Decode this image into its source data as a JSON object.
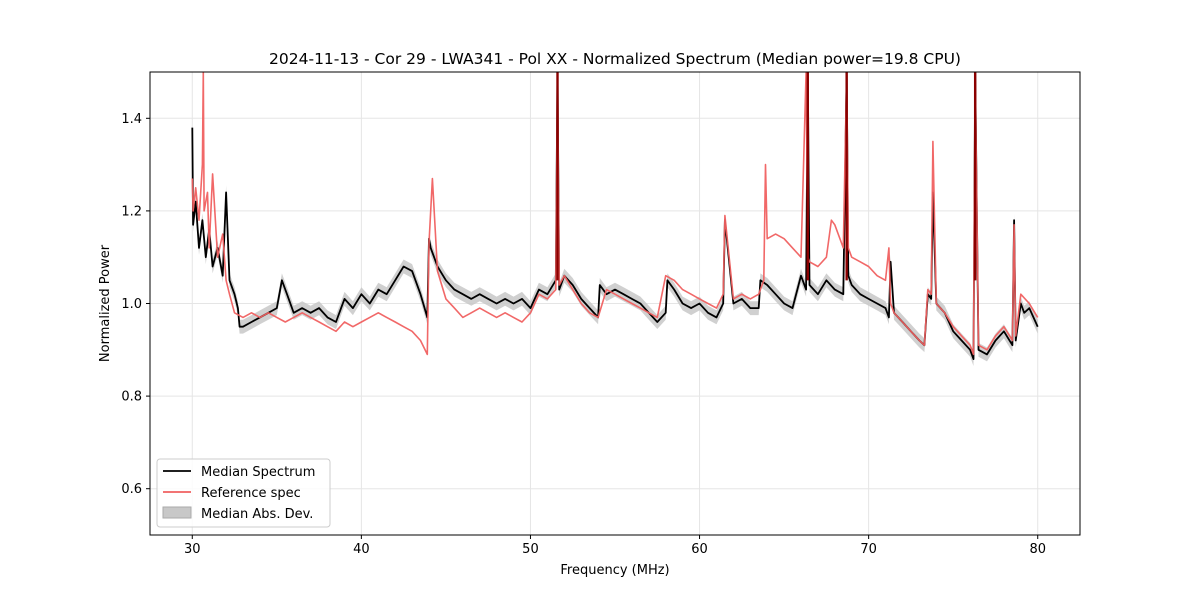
{
  "chart_data": {
    "type": "line",
    "title": "2024-11-13 - Cor 29 - LWA341 - Pol XX - Normalized Spectrum (Median power=19.8 CPU)",
    "xlabel": "Frequency (MHz)",
    "ylabel": "Normalized Power",
    "xlim": [
      27.5,
      82.5
    ],
    "ylim": [
      0.5,
      1.5
    ],
    "xticks": [
      30,
      40,
      50,
      60,
      70,
      80
    ],
    "yticks": [
      0.6,
      0.8,
      1.0,
      1.2,
      1.4
    ],
    "xtick_labels": [
      "30",
      "40",
      "50",
      "60",
      "70",
      "80"
    ],
    "ytick_labels": [
      "0.6",
      "0.8",
      "1.0",
      "1.2",
      "1.4"
    ],
    "grid": true,
    "legend_position": "lower-left",
    "colors": {
      "median": "#000000",
      "reference": "#f06060",
      "mad": "#c8c8c8",
      "overlap": "#8b0000"
    },
    "series": [
      {
        "name": "Median Spectrum",
        "color": "#000000",
        "x": [
          30.0,
          30.05,
          30.2,
          30.4,
          30.6,
          30.8,
          31.0,
          31.2,
          31.5,
          31.8,
          32.0,
          32.2,
          32.5,
          32.7,
          32.8,
          33.0,
          33.5,
          34.0,
          34.5,
          35.0,
          35.3,
          35.6,
          36.0,
          36.5,
          37.0,
          37.5,
          38.0,
          38.5,
          38.8,
          39.0,
          39.5,
          40.0,
          40.5,
          41.0,
          41.5,
          42.0,
          42.5,
          43.0,
          43.5,
          43.9,
          44.0,
          44.1,
          44.5,
          45.0,
          45.5,
          46.0,
          46.5,
          47.0,
          47.5,
          48.0,
          48.5,
          49.0,
          49.5,
          50.0,
          50.5,
          51.0,
          51.5,
          51.6,
          51.7,
          52.0,
          52.5,
          53.0,
          53.5,
          54.0,
          54.1,
          54.5,
          55.0,
          55.5,
          56.0,
          56.5,
          57.0,
          57.5,
          58.0,
          58.1,
          58.5,
          59.0,
          59.5,
          60.0,
          60.5,
          61.0,
          61.4,
          61.5,
          62.0,
          62.5,
          63.0,
          63.5,
          63.6,
          64.0,
          64.5,
          65.0,
          65.5,
          66.0,
          66.3,
          66.4,
          66.5,
          67.0,
          67.5,
          68.0,
          68.5,
          68.7,
          68.8,
          69.0,
          69.5,
          70.0,
          70.5,
          71.0,
          71.2,
          71.3,
          71.5,
          72.0,
          72.5,
          73.0,
          73.3,
          73.5,
          73.7,
          73.8,
          74.0,
          74.5,
          75.0,
          75.5,
          76.0,
          76.2,
          76.3,
          76.5,
          77.0,
          77.5,
          78.0,
          78.5,
          78.6,
          78.7,
          79.0,
          79.2,
          79.5,
          80.0
        ],
        "y": [
          1.38,
          1.17,
          1.22,
          1.12,
          1.18,
          1.1,
          1.16,
          1.08,
          1.12,
          1.06,
          1.24,
          1.05,
          1.02,
          0.99,
          0.95,
          0.95,
          0.96,
          0.97,
          0.98,
          0.99,
          1.05,
          1.02,
          0.98,
          0.99,
          0.98,
          0.99,
          0.97,
          0.96,
          0.99,
          1.01,
          0.99,
          1.02,
          1.0,
          1.03,
          1.02,
          1.05,
          1.08,
          1.07,
          1.02,
          0.97,
          1.14,
          1.12,
          1.08,
          1.05,
          1.03,
          1.02,
          1.01,
          1.02,
          1.01,
          1.0,
          1.01,
          1.0,
          1.01,
          0.99,
          1.03,
          1.02,
          1.05,
          1.5,
          1.03,
          1.06,
          1.04,
          1.01,
          0.99,
          0.97,
          1.04,
          1.02,
          1.03,
          1.02,
          1.01,
          1.0,
          0.98,
          0.96,
          0.98,
          1.05,
          1.03,
          1.0,
          0.99,
          1.0,
          0.98,
          0.97,
          1.0,
          1.18,
          1.0,
          1.01,
          0.99,
          0.99,
          1.05,
          1.04,
          1.02,
          1.0,
          0.99,
          1.06,
          1.03,
          1.5,
          1.04,
          1.02,
          1.05,
          1.03,
          1.02,
          1.5,
          1.06,
          1.04,
          1.02,
          1.01,
          1.0,
          0.99,
          0.97,
          1.09,
          0.98,
          0.96,
          0.94,
          0.92,
          0.91,
          1.02,
          1.01,
          1.24,
          1.0,
          0.98,
          0.94,
          0.92,
          0.9,
          0.88,
          1.5,
          0.9,
          0.89,
          0.92,
          0.94,
          0.91,
          1.18,
          0.92,
          1.0,
          0.98,
          0.99,
          0.95
        ]
      },
      {
        "name": "Reference spec",
        "color": "#f06060",
        "x": [
          30.0,
          30.05,
          30.2,
          30.4,
          30.6,
          30.65,
          30.7,
          30.9,
          31.0,
          31.2,
          31.5,
          31.8,
          32.0,
          32.2,
          32.5,
          33.0,
          33.5,
          34.0,
          34.5,
          35.0,
          35.5,
          36.0,
          36.5,
          37.0,
          37.5,
          38.0,
          38.5,
          39.0,
          39.5,
          40.0,
          40.5,
          41.0,
          41.5,
          42.0,
          42.5,
          43.0,
          43.5,
          43.9,
          44.0,
          44.2,
          44.5,
          45.0,
          45.5,
          46.0,
          46.5,
          47.0,
          47.5,
          48.0,
          48.5,
          49.0,
          49.5,
          50.0,
          50.5,
          51.0,
          51.5,
          51.6,
          51.7,
          52.0,
          52.5,
          53.0,
          53.5,
          54.0,
          54.5,
          55.0,
          55.5,
          56.0,
          56.5,
          57.0,
          57.5,
          58.0,
          58.5,
          59.0,
          59.5,
          60.0,
          60.5,
          61.0,
          61.4,
          61.5,
          62.0,
          62.5,
          63.0,
          63.5,
          63.8,
          63.9,
          64.0,
          64.5,
          65.0,
          65.5,
          66.0,
          66.3,
          66.4,
          66.5,
          67.0,
          67.5,
          67.8,
          68.0,
          68.5,
          68.7,
          68.8,
          69.0,
          69.5,
          70.0,
          70.5,
          71.0,
          71.2,
          71.3,
          71.5,
          72.0,
          72.5,
          73.0,
          73.3,
          73.5,
          73.7,
          73.8,
          74.0,
          74.5,
          75.0,
          75.5,
          76.0,
          76.2,
          76.3,
          76.5,
          77.0,
          77.5,
          78.0,
          78.5,
          78.6,
          78.7,
          79.0,
          79.5,
          80.0
        ],
        "y": [
          1.27,
          1.2,
          1.25,
          1.18,
          1.3,
          1.5,
          1.2,
          1.24,
          1.12,
          1.28,
          1.1,
          1.15,
          1.05,
          1.02,
          0.98,
          0.97,
          0.98,
          0.97,
          0.98,
          0.97,
          0.96,
          0.97,
          0.98,
          0.97,
          0.96,
          0.95,
          0.94,
          0.96,
          0.95,
          0.96,
          0.97,
          0.98,
          0.97,
          0.96,
          0.95,
          0.94,
          0.92,
          0.89,
          1.13,
          1.27,
          1.07,
          1.01,
          0.99,
          0.97,
          0.98,
          0.99,
          0.98,
          0.97,
          0.98,
          0.97,
          0.96,
          0.98,
          1.02,
          1.01,
          1.03,
          1.5,
          1.04,
          1.06,
          1.03,
          1.0,
          0.98,
          0.97,
          1.03,
          1.02,
          1.01,
          1.0,
          0.99,
          0.98,
          0.97,
          1.06,
          1.05,
          1.03,
          1.02,
          1.01,
          1.0,
          0.99,
          1.02,
          1.19,
          1.01,
          1.02,
          1.01,
          1.02,
          1.05,
          1.3,
          1.14,
          1.15,
          1.14,
          1.12,
          1.1,
          1.5,
          1.1,
          1.09,
          1.08,
          1.1,
          1.18,
          1.17,
          1.12,
          1.5,
          1.12,
          1.1,
          1.09,
          1.08,
          1.06,
          1.05,
          1.12,
          1.0,
          0.98,
          0.96,
          0.94,
          0.92,
          0.91,
          1.03,
          1.02,
          1.35,
          1.0,
          0.98,
          0.95,
          0.93,
          0.91,
          0.89,
          1.5,
          0.91,
          0.9,
          0.93,
          0.95,
          0.92,
          1.17,
          0.93,
          1.02,
          1.0,
          0.97
        ]
      },
      {
        "name": "Median Abs. Dev.",
        "color": "#c8c8c8",
        "band": 0.015
      }
    ]
  }
}
